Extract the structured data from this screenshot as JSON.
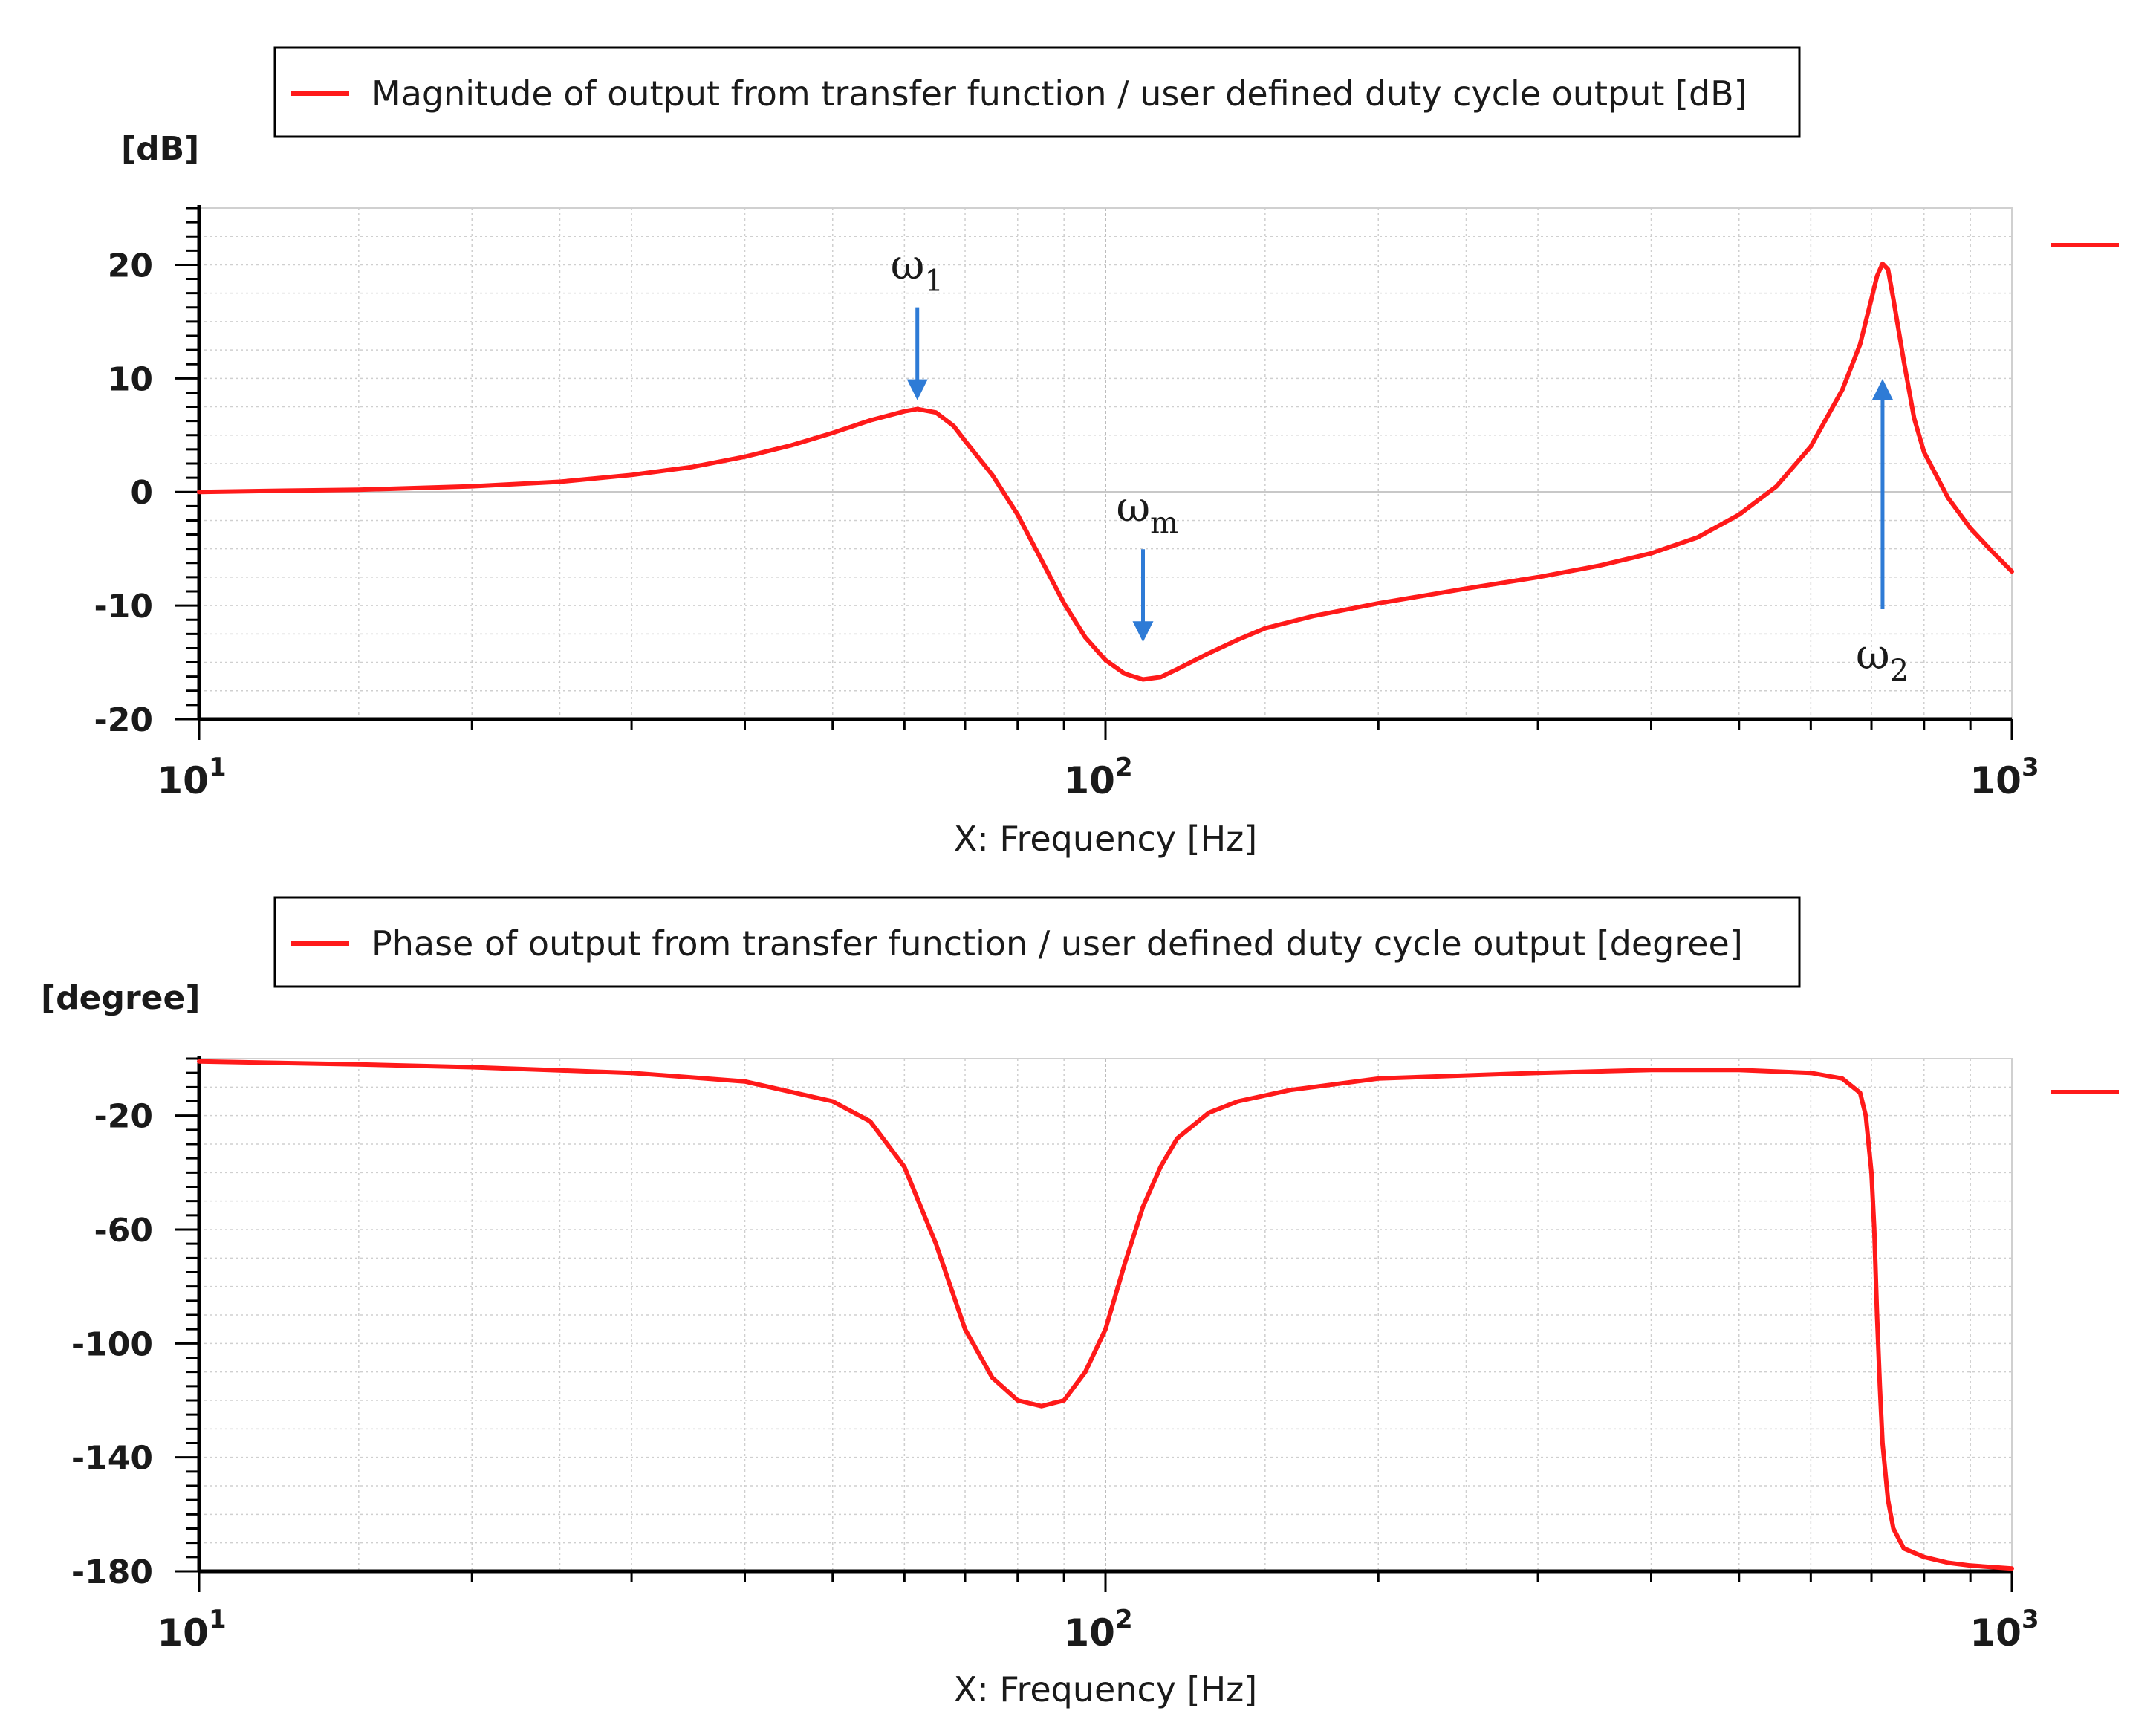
{
  "colors": {
    "series": "#ff1a1a",
    "annotation": "#2e7bd6",
    "grid": "#c8c8c8",
    "axis": "#000000"
  },
  "chart_data": [
    {
      "type": "line",
      "title": "Magnitude of output from transfer function / user defined duty cycle output [dB]",
      "legend_label": "Magnitude of output from transfer function / user defined duty cycle output [dB]",
      "legend_position": "top",
      "unit_label": "[dB]",
      "xlabel": "X: Frequency [Hz]",
      "ylabel": "[dB]",
      "xscale": "log",
      "xlim": [
        10,
        1000
      ],
      "ylim": [
        -20,
        25
      ],
      "yticks": [
        20,
        10,
        0,
        -10,
        -20
      ],
      "xticks": [
        {
          "base": "10",
          "exp": "1",
          "value": 10
        },
        {
          "base": "10",
          "exp": "2",
          "value": 100
        },
        {
          "base": "10",
          "exp": "3",
          "value": 1000
        }
      ],
      "grid": true,
      "series": [
        {
          "name": "Magnitude",
          "x": [
            10,
            12,
            15,
            20,
            25,
            30,
            35,
            40,
            45,
            50,
            55,
            60,
            62,
            65,
            68,
            70,
            75,
            80,
            85,
            90,
            95,
            100,
            105,
            110,
            115,
            120,
            130,
            140,
            150,
            170,
            200,
            250,
            300,
            350,
            400,
            450,
            500,
            550,
            600,
            650,
            680,
            700,
            710,
            720,
            730,
            740,
            760,
            780,
            800,
            850,
            900,
            950,
            1000
          ],
          "values": [
            0,
            0.1,
            0.2,
            0.5,
            0.9,
            1.5,
            2.2,
            3.1,
            4.1,
            5.2,
            6.3,
            7.1,
            7.3,
            7.0,
            5.8,
            4.5,
            1.5,
            -2.0,
            -6.0,
            -9.8,
            -12.8,
            -14.8,
            -16.0,
            -16.5,
            -16.3,
            -15.6,
            -14.2,
            -13.0,
            -12.0,
            -10.9,
            -9.8,
            -8.5,
            -7.5,
            -6.5,
            -5.4,
            -4.0,
            -2.0,
            0.5,
            4.0,
            9.0,
            13.0,
            17.0,
            19.0,
            20.1,
            19.6,
            17.0,
            11.5,
            6.5,
            3.5,
            -0.5,
            -3.2,
            -5.2,
            -7.0
          ]
        }
      ],
      "annotations": [
        {
          "label": "ω",
          "sub": "1",
          "x": 62,
          "y": 7.3,
          "arrow": "down"
        },
        {
          "label": "ω",
          "sub": "m",
          "x": 110,
          "y": -14.0,
          "arrow": "down"
        },
        {
          "label": "ω",
          "sub": "2",
          "x": 720,
          "y": 9.0,
          "arrow": "up"
        }
      ]
    },
    {
      "type": "line",
      "title": "Phase of output from transfer function / user defined duty cycle output [degree]",
      "legend_label": "Phase of output from transfer function / user defined duty cycle output [degree]",
      "legend_position": "top",
      "unit_label": "[degree]",
      "xlabel": "X: Frequency [Hz]",
      "ylabel": "[degree]",
      "xscale": "log",
      "xlim": [
        10,
        1000
      ],
      "ylim": [
        -180,
        0
      ],
      "yticks": [
        -20,
        -60,
        -100,
        -140,
        -180
      ],
      "xticks": [
        {
          "base": "10",
          "exp": "1",
          "value": 10
        },
        {
          "base": "10",
          "exp": "2",
          "value": 100
        },
        {
          "base": "10",
          "exp": "3",
          "value": 1000
        }
      ],
      "grid": true,
      "series": [
        {
          "name": "Phase",
          "x": [
            10,
            15,
            20,
            30,
            40,
            50,
            55,
            60,
            65,
            70,
            75,
            80,
            85,
            90,
            95,
            100,
            105,
            110,
            115,
            120,
            130,
            140,
            160,
            200,
            300,
            400,
            500,
            600,
            650,
            680,
            690,
            700,
            705,
            710,
            715,
            720,
            730,
            740,
            760,
            800,
            850,
            900,
            1000
          ],
          "values": [
            -1,
            -2,
            -3,
            -5,
            -8,
            -15,
            -22,
            -38,
            -65,
            -95,
            -112,
            -120,
            -122,
            -120,
            -110,
            -95,
            -72,
            -52,
            -38,
            -28,
            -19,
            -15,
            -11,
            -7,
            -5,
            -4,
            -4,
            -5,
            -7,
            -12,
            -20,
            -40,
            -60,
            -90,
            -115,
            -135,
            -155,
            -165,
            -172,
            -175,
            -177,
            -178,
            -179
          ]
        }
      ]
    }
  ]
}
